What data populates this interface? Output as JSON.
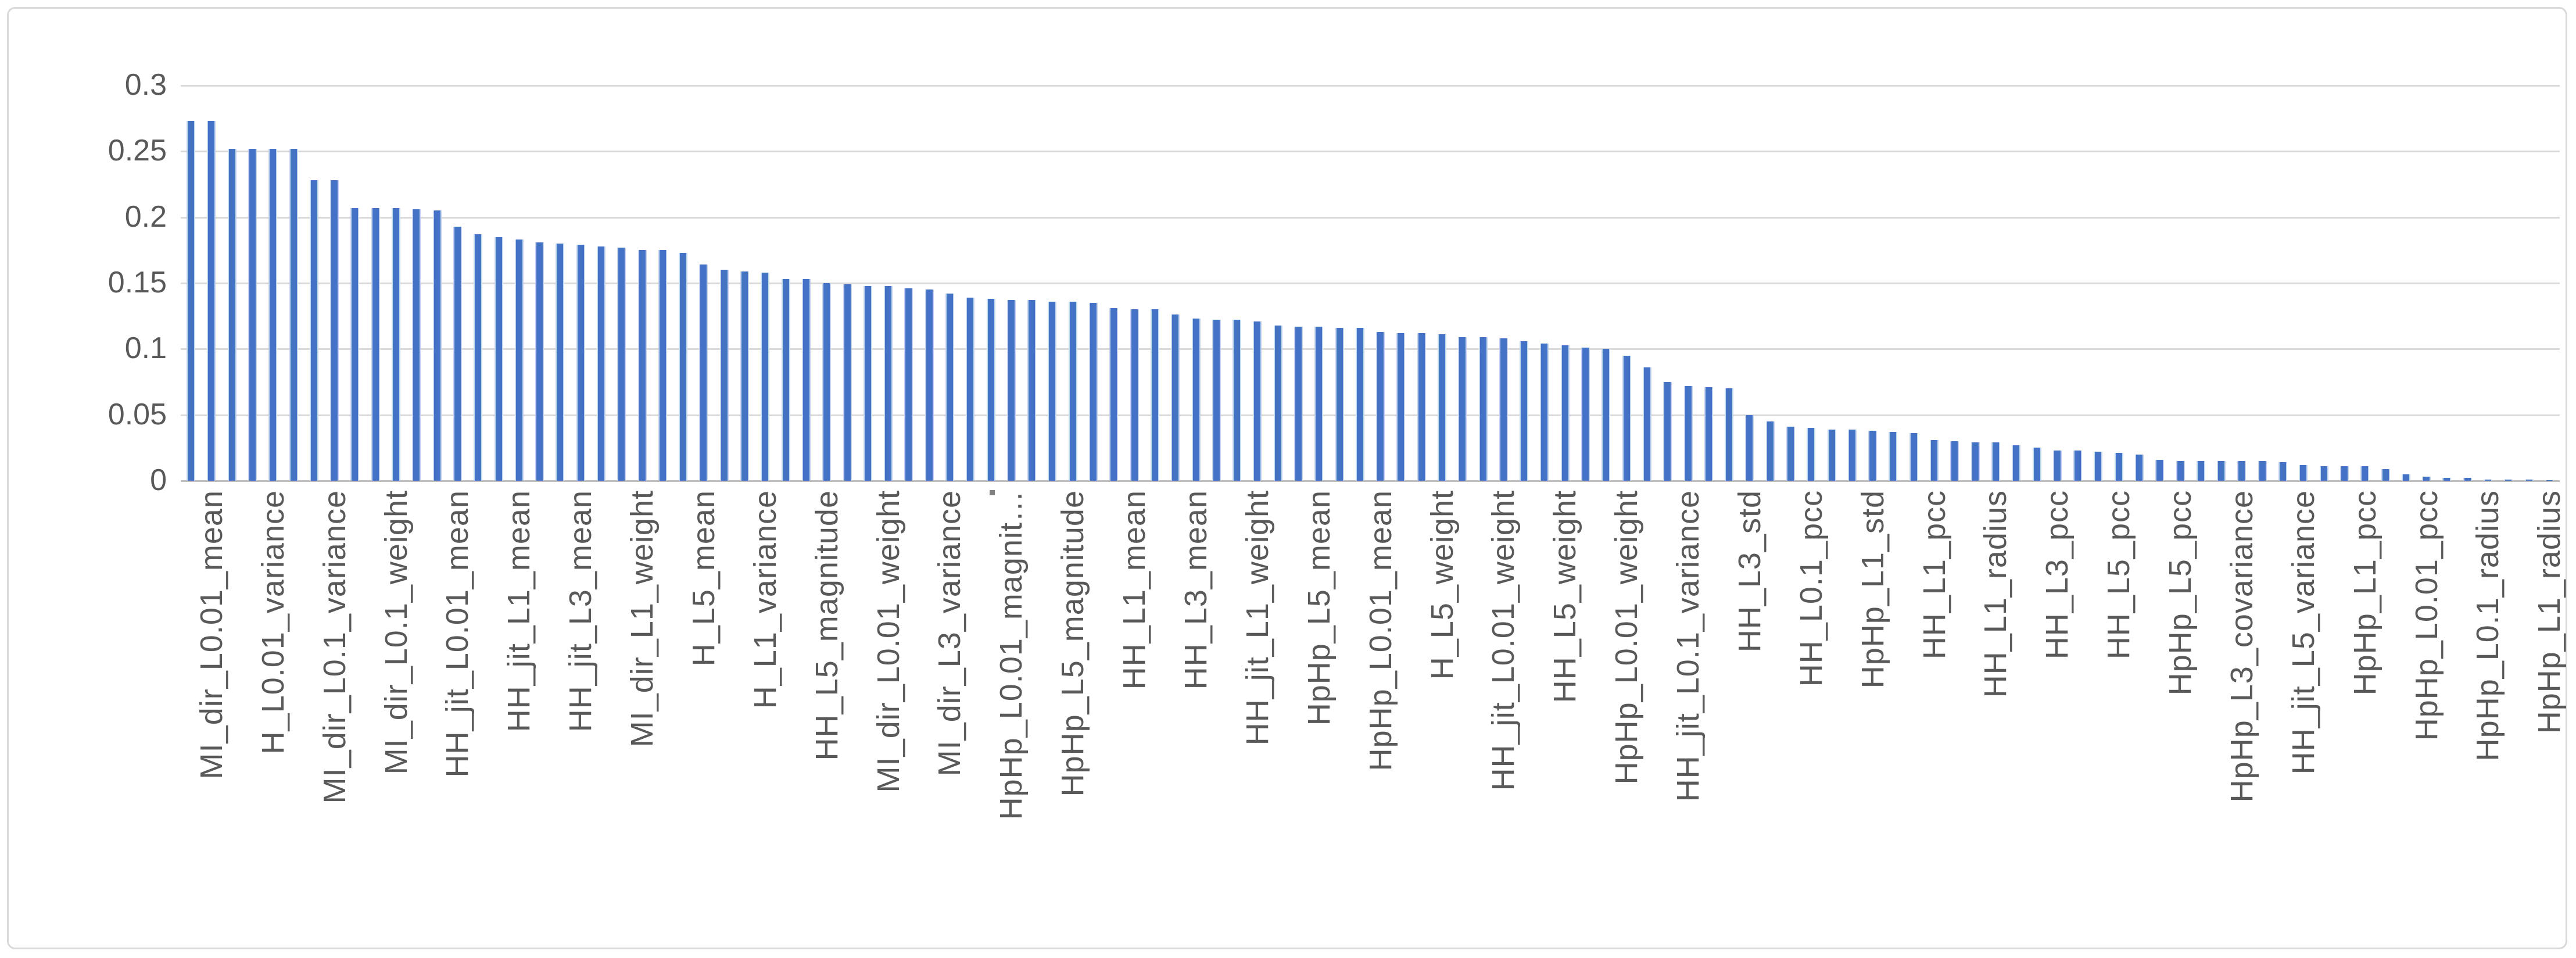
{
  "chart_data": {
    "type": "bar",
    "title": "",
    "xlabel": "",
    "ylabel": "",
    "legend": false,
    "grid": true,
    "ylim": [
      0,
      0.3
    ],
    "ytick_values": [
      0,
      0.05,
      0.1,
      0.15,
      0.2,
      0.25,
      0.3
    ],
    "ytick_labels": [
      "0",
      "0.05",
      "0.1",
      "0.15",
      "0.2",
      "0.25",
      "0.3"
    ],
    "bar_count": 116,
    "category_label_interval": 3,
    "first_labeled_bar_index": 1,
    "categories": [
      "MI_dir_L0.01_mean",
      "H_L0.01_variance",
      "MI_dir_L0.1_variance",
      "MI_dir_L0.1_weight",
      "HH_jit_L0.01_mean",
      "HH_jit_L1_mean",
      "HH_jit_L3_mean",
      "MI_dir_L1_weight",
      "H_L5_mean",
      "H_L1_variance",
      "HH_L5_magnitude",
      "MI_dir_L0.01_weight",
      "MI_dir_L3_variance",
      "HpHp_L0.01_magnit…",
      "HpHp_L5_magnitude",
      "HH_L1_mean",
      "HH_L3_mean",
      "HH_jit_L1_weight",
      "HpHp_L5_mean",
      "HpHp_L0.01_mean",
      "H_L5_weight",
      "HH_jit_L0.01_weight",
      "HH_L5_weight",
      "HpHp_L0.01_weight",
      "HH_jit_L0.1_variance",
      "HH_L3_std",
      "HH_L0.1_pcc",
      "HpHp_L1_std",
      "HH_L1_pcc",
      "HH_L1_radius",
      "HH_L3_pcc",
      "HH_L5_pcc",
      "HpHp_L5_pcc",
      "HpHp_L3_covariance",
      "HH_jit_L5_variance",
      "HpHp_L1_pcc",
      "HpHp_L0.01_pcc",
      "HpHp_L0.1_radius",
      "HpHp_L1_radius"
    ],
    "values": [
      0.273,
      0.273,
      0.252,
      0.252,
      0.252,
      0.252,
      0.228,
      0.228,
      0.207,
      0.207,
      0.207,
      0.206,
      0.205,
      0.193,
      0.187,
      0.185,
      0.183,
      0.181,
      0.18,
      0.179,
      0.178,
      0.177,
      0.175,
      0.175,
      0.173,
      0.164,
      0.16,
      0.159,
      0.158,
      0.153,
      0.153,
      0.15,
      0.149,
      0.148,
      0.148,
      0.146,
      0.145,
      0.142,
      0.139,
      0.138,
      0.137,
      0.137,
      0.136,
      0.136,
      0.135,
      0.131,
      0.13,
      0.13,
      0.126,
      0.123,
      0.122,
      0.122,
      0.121,
      0.118,
      0.117,
      0.117,
      0.116,
      0.116,
      0.113,
      0.112,
      0.112,
      0.111,
      0.109,
      0.109,
      0.108,
      0.106,
      0.104,
      0.103,
      0.101,
      0.1,
      0.095,
      0.086,
      0.075,
      0.072,
      0.071,
      0.07,
      0.05,
      0.045,
      0.041,
      0.04,
      0.039,
      0.039,
      0.038,
      0.037,
      0.036,
      0.031,
      0.03,
      0.029,
      0.029,
      0.027,
      0.025,
      0.023,
      0.023,
      0.022,
      0.021,
      0.02,
      0.016,
      0.015,
      0.015,
      0.015,
      0.015,
      0.015,
      0.014,
      0.012,
      0.011,
      0.011,
      0.011,
      0.009,
      0.005,
      0.003,
      0.002,
      0.002,
      0.001,
      0.001,
      0.001,
      0.0005
    ]
  },
  "colors": {
    "bar": "#4472C4",
    "gridline": "#D9D9D9",
    "axis_line": "#BFBFBF",
    "text": "#595959",
    "frame_border": "#D9D9D9",
    "background": "#FFFFFF"
  }
}
